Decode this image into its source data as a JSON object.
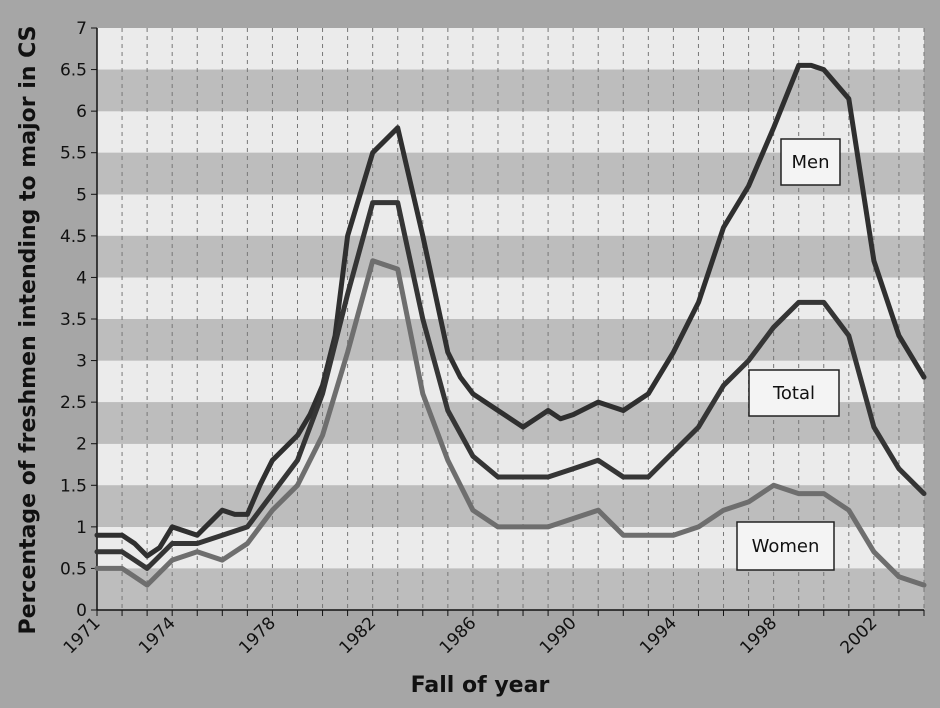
{
  "chart_data": {
    "type": "line",
    "xlabel": "Fall of year",
    "ylabel": "Percentage of freshmen intending to major in CS",
    "xlim": [
      1971,
      2004
    ],
    "ylim": [
      0,
      7
    ],
    "x_ticks": [
      "1971",
      "1974",
      "1978",
      "1982",
      "1986",
      "1990",
      "1994",
      "1998",
      "2002"
    ],
    "y_ticks": [
      "0",
      "0.5",
      "1",
      "1.5",
      "2",
      "2.5",
      "3",
      "3.5",
      "4",
      "4.5",
      "5",
      "5.5",
      "6",
      "6.5",
      "7"
    ],
    "grid": "vertical dashed lines at each year; alternating horizontal bands every 0.5",
    "series": [
      {
        "name": "Men",
        "color": "#2f2f2f",
        "x": [
          1971,
          1972,
          1972.5,
          1973,
          1973.5,
          1974,
          1975,
          1976,
          1976.5,
          1977,
          1977.5,
          1978,
          1979,
          1979.5,
          1980,
          1980.5,
          1981,
          1982,
          1983,
          1984,
          1985,
          1985.5,
          1986,
          1987,
          1988,
          1988.5,
          1989,
          1989.5,
          1990,
          1991,
          1992,
          1993,
          1994,
          1995,
          1996,
          1997,
          1998,
          1999,
          1999.5,
          2000,
          2001,
          2002,
          2003,
          2004
        ],
        "values": [
          0.9,
          0.9,
          0.8,
          0.65,
          0.75,
          1.0,
          0.9,
          1.2,
          1.15,
          1.15,
          1.5,
          1.8,
          2.1,
          2.35,
          2.7,
          3.3,
          4.5,
          5.5,
          5.8,
          4.5,
          3.1,
          2.8,
          2.6,
          2.4,
          2.2,
          2.3,
          2.4,
          2.3,
          2.35,
          2.5,
          2.4,
          2.6,
          3.1,
          3.7,
          4.6,
          5.1,
          5.8,
          6.55,
          6.55,
          6.5,
          6.15,
          4.2,
          3.3,
          2.8
        ]
      },
      {
        "name": "Total",
        "color": "#353535",
        "x": [
          1971,
          1972,
          1973,
          1974,
          1975,
          1976,
          1977,
          1978,
          1979,
          1980,
          1981,
          1982,
          1983,
          1984,
          1985,
          1986,
          1987,
          1988,
          1989,
          1990,
          1991,
          1992,
          1993,
          1994,
          1995,
          1996,
          1997,
          1998,
          1999,
          2000,
          2001,
          2002,
          2003,
          2004
        ],
        "values": [
          0.7,
          0.7,
          0.5,
          0.8,
          0.8,
          0.9,
          1.0,
          1.4,
          1.8,
          2.6,
          3.8,
          4.9,
          4.9,
          3.5,
          2.4,
          1.85,
          1.6,
          1.6,
          1.6,
          1.7,
          1.8,
          1.6,
          1.6,
          1.9,
          2.2,
          2.7,
          3.0,
          3.4,
          3.7,
          3.7,
          3.3,
          2.2,
          1.7,
          1.4
        ]
      },
      {
        "name": "Women",
        "color": "#6e6e6e",
        "x": [
          1971,
          1972,
          1973,
          1974,
          1975,
          1976,
          1977,
          1978,
          1979,
          1980,
          1981,
          1982,
          1983,
          1984,
          1985,
          1986,
          1987,
          1988,
          1989,
          1990,
          1991,
          1992,
          1993,
          1994,
          1995,
          1996,
          1997,
          1998,
          1999,
          2000,
          2001,
          2002,
          2003,
          2004
        ],
        "values": [
          0.5,
          0.5,
          0.3,
          0.6,
          0.7,
          0.6,
          0.8,
          1.2,
          1.5,
          2.1,
          3.1,
          4.2,
          4.1,
          2.6,
          1.8,
          1.2,
          1.0,
          1.0,
          1.0,
          1.1,
          1.2,
          0.9,
          0.9,
          0.9,
          1.0,
          1.2,
          1.3,
          1.5,
          1.4,
          1.4,
          1.2,
          0.7,
          0.4,
          0.3
        ]
      }
    ]
  },
  "labels": {
    "men": "Men",
    "total": "Total",
    "women": "Women"
  },
  "colors": {
    "background": "#a6a6a6",
    "plot_band_light": "#ebebeb",
    "plot_band_dark": "#bdbdbd"
  }
}
